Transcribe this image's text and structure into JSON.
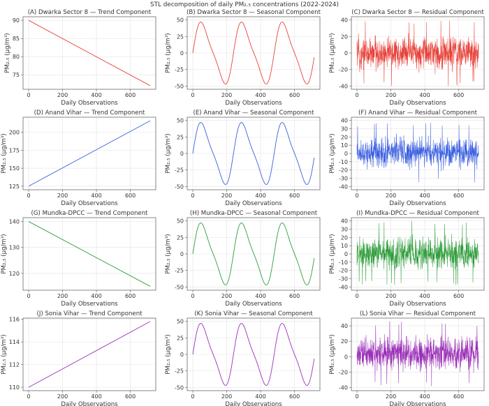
{
  "figure": {
    "suptitle": "STL decomposition of daily PM₂.₅ concentrations (2022-2024)"
  },
  "chart_data": [
    {
      "id": "A",
      "type": "line",
      "component": "trend",
      "title": "(A) Dwarka Sector 8 — Trend Component",
      "xlabel": "Daily Observations",
      "ylabel": "PM₂.₅ (μg/m³)",
      "color": "#e8423a",
      "xlim": [
        -33,
        750
      ],
      "ylim": [
        71,
        91
      ],
      "xticks": [
        0,
        200,
        400,
        600
      ],
      "yticks": [
        75,
        80,
        85,
        90
      ],
      "x": [
        0,
        717
      ],
      "y": [
        90,
        72
      ]
    },
    {
      "id": "B",
      "type": "line",
      "component": "seasonal",
      "title": "(B) Dwarka Sector 8 — Seasonal Component",
      "xlabel": "Daily Observations",
      "ylabel": "PM₂.₅ (μg/m³)",
      "color": "#e8423a",
      "xlim": [
        -33,
        750
      ],
      "ylim": [
        -55,
        55
      ],
      "xticks": [
        0,
        200,
        400,
        600
      ],
      "yticks": [
        -50,
        -25,
        0,
        25,
        50
      ],
      "amplitude": 50,
      "period_days": 240,
      "x_range": [
        0,
        717
      ]
    },
    {
      "id": "C",
      "type": "line",
      "component": "residual",
      "title": "(C) Dwarka Sector 8 — Residual Component",
      "xlabel": "Daily Observations",
      "ylabel": "PM₂.₅ (μg/m³)",
      "color": "#e8423a",
      "xlim": [
        -33,
        750
      ],
      "ylim": [
        -44,
        44
      ],
      "xticks": [
        0,
        200,
        400,
        600
      ],
      "yticks": [
        -40,
        -20,
        0,
        20,
        40
      ],
      "approx_range": [
        -40,
        40
      ],
      "x_range": [
        0,
        717
      ]
    },
    {
      "id": "D",
      "type": "line",
      "component": "trend",
      "title": "(D) Anand Vihar — Trend Component",
      "xlabel": "Daily Observations",
      "ylabel": "PM₂.₅ (μg/m³)",
      "color": "#3a5fe0",
      "xlim": [
        -33,
        750
      ],
      "ylim": [
        120,
        221
      ],
      "xticks": [
        0,
        200,
        400,
        600
      ],
      "yticks": [
        125,
        150,
        175,
        200
      ],
      "x": [
        0,
        717
      ],
      "y": [
        125,
        216
      ]
    },
    {
      "id": "E",
      "type": "line",
      "component": "seasonal",
      "title": "(E) Anand Vihar — Seasonal Component",
      "xlabel": "Daily Observations",
      "ylabel": "PM₂.₅ (μg/m³)",
      "color": "#3a5fe0",
      "xlim": [
        -33,
        750
      ],
      "ylim": [
        -55,
        55
      ],
      "xticks": [
        0,
        200,
        400,
        600
      ],
      "yticks": [
        -50,
        -25,
        0,
        25,
        50
      ],
      "amplitude": 50,
      "period_days": 240,
      "x_range": [
        0,
        717
      ]
    },
    {
      "id": "F",
      "type": "line",
      "component": "residual",
      "title": "(F) Anand Vihar — Residual Component",
      "xlabel": "Daily Observations",
      "ylabel": "PM₂.₅ (μg/m³)",
      "color": "#3a5fe0",
      "xlim": [
        -33,
        750
      ],
      "ylim": [
        -44,
        44
      ],
      "xticks": [
        0,
        200,
        400,
        600
      ],
      "yticks": [
        -40,
        -30,
        -20,
        -10,
        0,
        10,
        20,
        30,
        40
      ],
      "approx_range": [
        -35,
        38
      ],
      "x_range": [
        0,
        717
      ]
    },
    {
      "id": "G",
      "type": "line",
      "component": "trend",
      "title": "(G) Mundka-DPCC — Trend Component",
      "xlabel": "Daily Observations",
      "ylabel": "PM₂.₅ (μg/m³)",
      "color": "#2e9d3a",
      "xlim": [
        -33,
        750
      ],
      "ylim": [
        113.5,
        141.5
      ],
      "xticks": [
        0,
        200,
        400,
        600
      ],
      "yticks": [
        120,
        130,
        140
      ],
      "x": [
        0,
        717
      ],
      "y": [
        140,
        115
      ]
    },
    {
      "id": "H",
      "type": "line",
      "component": "seasonal",
      "title": "(H) Mundka-DPCC — Seasonal Component",
      "xlabel": "Daily Observations",
      "ylabel": "PM₂.₅ (μg/m³)",
      "color": "#2e9d3a",
      "xlim": [
        -33,
        750
      ],
      "ylim": [
        -55,
        55
      ],
      "xticks": [
        0,
        200,
        400,
        600
      ],
      "yticks": [
        -50,
        -25,
        0,
        25,
        50
      ],
      "amplitude": 50,
      "period_days": 240,
      "x_range": [
        0,
        717
      ]
    },
    {
      "id": "I",
      "type": "line",
      "component": "residual",
      "title": "(I) Mundka-DPCC — Residual Component",
      "xlabel": "Daily Observations",
      "ylabel": "PM₂.₅ (μg/m³)",
      "color": "#2e9d3a",
      "xlim": [
        -33,
        750
      ],
      "ylim": [
        -44,
        44
      ],
      "xticks": [
        0,
        200,
        400,
        600
      ],
      "yticks": [
        -40,
        -30,
        -20,
        -10,
        0,
        10,
        20,
        30,
        40
      ],
      "approx_range": [
        -38,
        40
      ],
      "x_range": [
        0,
        717
      ]
    },
    {
      "id": "J",
      "type": "line",
      "component": "trend",
      "title": "(J) Sonia Vihar — Trend Component",
      "xlabel": "Daily Observations",
      "ylabel": "PM₂.₅ (μg/m³)",
      "color": "#9b30b8",
      "xlim": [
        -33,
        750
      ],
      "ylim": [
        109.7,
        116.1
      ],
      "xticks": [
        0,
        200,
        400,
        600
      ],
      "yticks": [
        110,
        112,
        114,
        116
      ],
      "x": [
        0,
        717
      ],
      "y": [
        110,
        115.8
      ]
    },
    {
      "id": "K",
      "type": "line",
      "component": "seasonal",
      "title": "(K) Sonia Vihar — Seasonal Component",
      "xlabel": "Daily Observations",
      "ylabel": "PM₂.₅ (μg/m³)",
      "color": "#9b30b8",
      "xlim": [
        -33,
        750
      ],
      "ylim": [
        -55,
        55
      ],
      "xticks": [
        0,
        200,
        400,
        600
      ],
      "yticks": [
        -50,
        -25,
        0,
        25,
        50
      ],
      "amplitude": 50,
      "period_days": 240,
      "x_range": [
        0,
        717
      ]
    },
    {
      "id": "L",
      "type": "line",
      "component": "residual",
      "title": "(L) Sonia Vihar — Residual Component",
      "xlabel": "Daily Observations",
      "ylabel": "PM₂.₅ (μg/m³)",
      "color": "#9b30b8",
      "xlim": [
        -33,
        750
      ],
      "ylim": [
        -44,
        50
      ],
      "xticks": [
        0,
        200,
        400,
        600
      ],
      "yticks": [
        -40,
        -20,
        0,
        20,
        40
      ],
      "approx_range": [
        -38,
        46
      ],
      "x_range": [
        0,
        717
      ]
    }
  ]
}
